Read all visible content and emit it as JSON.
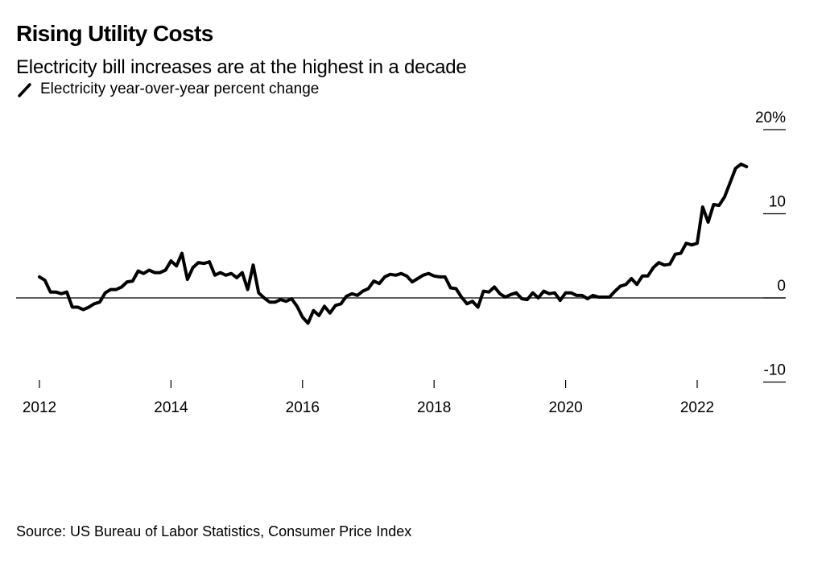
{
  "chart_data": {
    "type": "line",
    "title": "Rising Utility Costs",
    "subtitle": "Electricity bill increases are at the highest in a decade",
    "legend": [
      {
        "name": "Electricity year-over-year percent change",
        "color": "#000000"
      }
    ],
    "legend_placement": "top-left",
    "xlabel": "",
    "ylabel": "",
    "x_start": "2012-01",
    "x_frequency": "monthly",
    "x_ticks": [
      "2012",
      "2014",
      "2016",
      "2018",
      "2020",
      "2022"
    ],
    "y_ticks": [
      "20%",
      "10",
      "0",
      "-10"
    ],
    "y_tick_values": [
      20,
      10,
      0,
      -10
    ],
    "ylim": [
      -10,
      20
    ],
    "xlim": [
      "2012-01",
      "2022-12"
    ],
    "zero_line": true,
    "grid": false,
    "series": [
      {
        "name": "Electricity year-over-year percent change",
        "color": "#000000",
        "values": [
          2.5,
          2.1,
          0.7,
          0.7,
          0.5,
          0.7,
          -1.1,
          -1.1,
          -1.4,
          -1.1,
          -0.7,
          -0.5,
          0.6,
          1.0,
          1.0,
          1.3,
          1.9,
          2.0,
          3.2,
          2.9,
          3.3,
          3.0,
          3.0,
          3.3,
          4.4,
          3.8,
          5.3,
          2.2,
          3.6,
          4.2,
          4.1,
          4.3,
          2.7,
          3.0,
          2.7,
          2.9,
          2.4,
          3.0,
          1.0,
          3.9,
          0.6,
          0.0,
          -0.5,
          -0.5,
          -0.2,
          -0.4,
          -0.1,
          -1.0,
          -2.3,
          -3.0,
          -1.5,
          -2.1,
          -1.0,
          -1.8,
          -0.9,
          -0.7,
          0.2,
          0.5,
          0.3,
          0.8,
          1.1,
          2.0,
          1.7,
          2.5,
          2.8,
          2.7,
          2.9,
          2.6,
          1.9,
          2.3,
          2.7,
          2.9,
          2.6,
          2.5,
          2.5,
          1.2,
          1.1,
          0.1,
          -0.7,
          -0.4,
          -1.1,
          0.8,
          0.7,
          1.3,
          0.5,
          0.1,
          0.4,
          0.6,
          -0.1,
          -0.2,
          0.6,
          0.0,
          0.8,
          0.5,
          0.6,
          -0.3,
          0.6,
          0.6,
          0.3,
          0.3,
          -0.1,
          0.3,
          0.1,
          0.1,
          0.1,
          0.8,
          1.4,
          1.6,
          2.3,
          1.6,
          2.6,
          2.6,
          3.6,
          4.2,
          3.9,
          4.0,
          5.2,
          5.3,
          6.5,
          6.3,
          6.5,
          10.8,
          9.0,
          11.1,
          11.0,
          12.0,
          13.7,
          15.4,
          15.9,
          15.6
        ]
      }
    ]
  },
  "source": "Source: US Bureau of Labor Statistics, Consumer Price Index"
}
